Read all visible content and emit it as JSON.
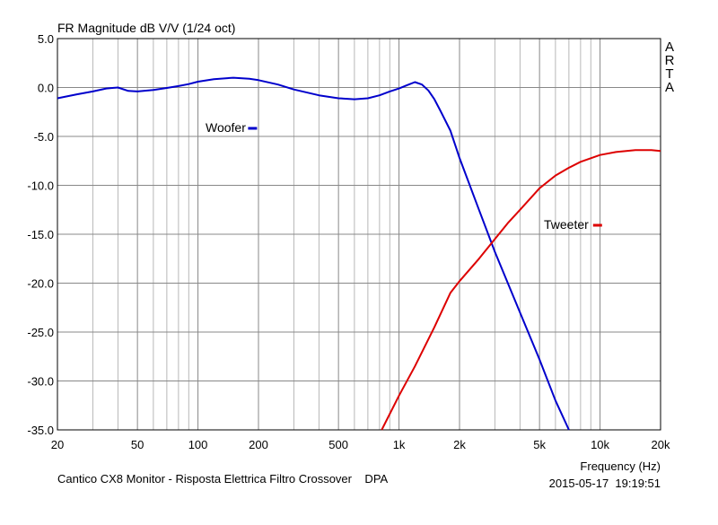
{
  "chart_data": {
    "type": "line",
    "title": "FR Magnitude dB V/V (1/24 oct)",
    "xlabel": "Frequency (Hz)",
    "ylabel": "",
    "xscale": "log",
    "xlim": [
      20,
      20000
    ],
    "ylim": [
      -35,
      5
    ],
    "grid": true,
    "x_ticks": [
      {
        "value": 20,
        "label": "20"
      },
      {
        "value": 50,
        "label": "50"
      },
      {
        "value": 100,
        "label": "100"
      },
      {
        "value": 200,
        "label": "200"
      },
      {
        "value": 500,
        "label": "500"
      },
      {
        "value": 1000,
        "label": "1k"
      },
      {
        "value": 2000,
        "label": "2k"
      },
      {
        "value": 5000,
        "label": "5k"
      },
      {
        "value": 10000,
        "label": "10k"
      },
      {
        "value": 20000,
        "label": "20k"
      }
    ],
    "y_ticks": [
      {
        "value": 5,
        "label": "5.0"
      },
      {
        "value": 0,
        "label": "0.0"
      },
      {
        "value": -5,
        "label": "-5.0"
      },
      {
        "value": -10,
        "label": "-10.0"
      },
      {
        "value": -15,
        "label": "-15.0"
      },
      {
        "value": -20,
        "label": "-20.0"
      },
      {
        "value": -25,
        "label": "-25.0"
      },
      {
        "value": -30,
        "label": "-30.0"
      },
      {
        "value": -35,
        "label": "-35.0"
      }
    ],
    "series": [
      {
        "name": "Woofer",
        "color": "#0000cc",
        "points": [
          [
            20,
            -1.1
          ],
          [
            25,
            -0.7
          ],
          [
            30,
            -0.4
          ],
          [
            35,
            -0.1
          ],
          [
            40,
            0.0
          ],
          [
            45,
            -0.35
          ],
          [
            50,
            -0.4
          ],
          [
            60,
            -0.25
          ],
          [
            70,
            -0.05
          ],
          [
            80,
            0.15
          ],
          [
            90,
            0.35
          ],
          [
            100,
            0.6
          ],
          [
            120,
            0.85
          ],
          [
            150,
            1.0
          ],
          [
            180,
            0.9
          ],
          [
            200,
            0.75
          ],
          [
            250,
            0.3
          ],
          [
            300,
            -0.2
          ],
          [
            400,
            -0.8
          ],
          [
            500,
            -1.1
          ],
          [
            600,
            -1.2
          ],
          [
            700,
            -1.1
          ],
          [
            800,
            -0.8
          ],
          [
            900,
            -0.4
          ],
          [
            1000,
            -0.1
          ],
          [
            1100,
            0.25
          ],
          [
            1200,
            0.55
          ],
          [
            1300,
            0.3
          ],
          [
            1400,
            -0.3
          ],
          [
            1500,
            -1.2
          ],
          [
            1600,
            -2.3
          ],
          [
            1800,
            -4.4
          ],
          [
            2000,
            -7.2
          ],
          [
            2500,
            -12.5
          ],
          [
            3000,
            -16.8
          ],
          [
            4000,
            -23.0
          ],
          [
            5000,
            -27.8
          ],
          [
            6000,
            -32.0
          ],
          [
            7000,
            -35.0
          ]
        ]
      },
      {
        "name": "Tweeter",
        "color": "#dd0000",
        "points": [
          [
            820,
            -35.0
          ],
          [
            1000,
            -31.5
          ],
          [
            1200,
            -28.5
          ],
          [
            1500,
            -24.5
          ],
          [
            1800,
            -21.0
          ],
          [
            2000,
            -19.8
          ],
          [
            2500,
            -17.5
          ],
          [
            3000,
            -15.5
          ],
          [
            3500,
            -13.8
          ],
          [
            4000,
            -12.5
          ],
          [
            5000,
            -10.3
          ],
          [
            6000,
            -9.0
          ],
          [
            7000,
            -8.2
          ],
          [
            8000,
            -7.6
          ],
          [
            10000,
            -6.9
          ],
          [
            12000,
            -6.6
          ],
          [
            15000,
            -6.4
          ],
          [
            18000,
            -6.4
          ],
          [
            20000,
            -6.5
          ]
        ]
      }
    ],
    "legend": [
      {
        "label": "Woofer",
        "color": "#0000cc",
        "placement": "upper-left"
      },
      {
        "label": "Tweeter",
        "color": "#dd0000",
        "placement": "right"
      }
    ],
    "watermark": [
      "A",
      "R",
      "T",
      "A"
    ]
  },
  "footer": {
    "caption": "Cantico CX8 Monitor - Risposta Elettrica Filtro Crossover    DPA",
    "timestamp": "2015-05-17  19:19:51"
  }
}
